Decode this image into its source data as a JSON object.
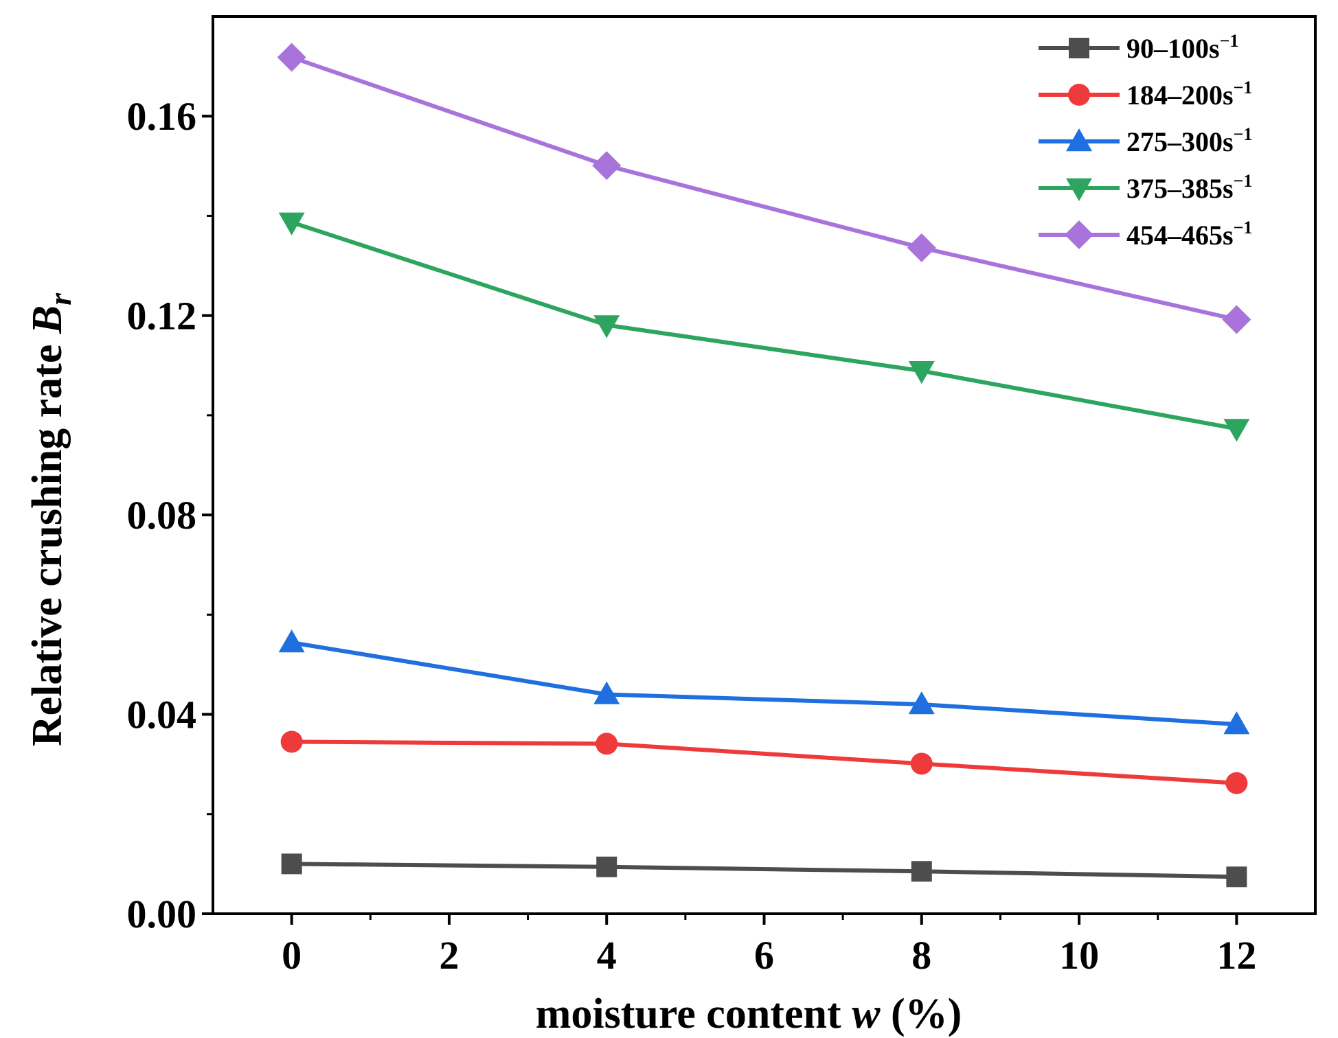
{
  "chart_data": {
    "type": "line",
    "title": "",
    "xlabel": "moisture content",
    "xlabel_var": "w",
    "xlabel_unit": " (%)",
    "ylabel": "Relative crushing rate",
    "ylabel_var": "B",
    "ylabel_sub": "r",
    "xlim": [
      -1,
      13
    ],
    "ylim": [
      0,
      0.18
    ],
    "x_ticks": [
      0,
      2,
      4,
      6,
      8,
      10,
      12
    ],
    "x_tick_labels": [
      "0",
      "2",
      "4",
      "6",
      "8",
      "10",
      "12"
    ],
    "y_ticks": [
      0,
      0.04,
      0.08,
      0.12,
      0.16
    ],
    "y_tick_labels": [
      "0.00",
      "0.04",
      "0.08",
      "0.12",
      "0.16"
    ],
    "legend_position": "top-right",
    "x": [
      0,
      4,
      8,
      12
    ],
    "series": [
      {
        "name": "90–100s",
        "sup": "−1",
        "marker": "square",
        "color": "#4d4d4d",
        "values": [
          0.01,
          0.0094,
          0.0085,
          0.0074
        ]
      },
      {
        "name": "184–200s",
        "sup": "−1",
        "marker": "circle",
        "color": "#ee3a3a",
        "values": [
          0.0345,
          0.0341,
          0.0301,
          0.0262
        ]
      },
      {
        "name": "275–300s",
        "sup": "−1",
        "marker": "triangle-up",
        "color": "#1f6fe0",
        "values": [
          0.0544,
          0.044,
          0.042,
          0.038
        ]
      },
      {
        "name": "375–385s",
        "sup": "−1",
        "marker": "triangle-down",
        "color": "#2ea55f",
        "values": [
          0.1387,
          0.1181,
          0.1089,
          0.0973
        ]
      },
      {
        "name": "454–465s",
        "sup": "−1",
        "marker": "diamond",
        "color": "#a874dc",
        "values": [
          0.1718,
          0.1501,
          0.1336,
          0.1192
        ]
      }
    ]
  }
}
